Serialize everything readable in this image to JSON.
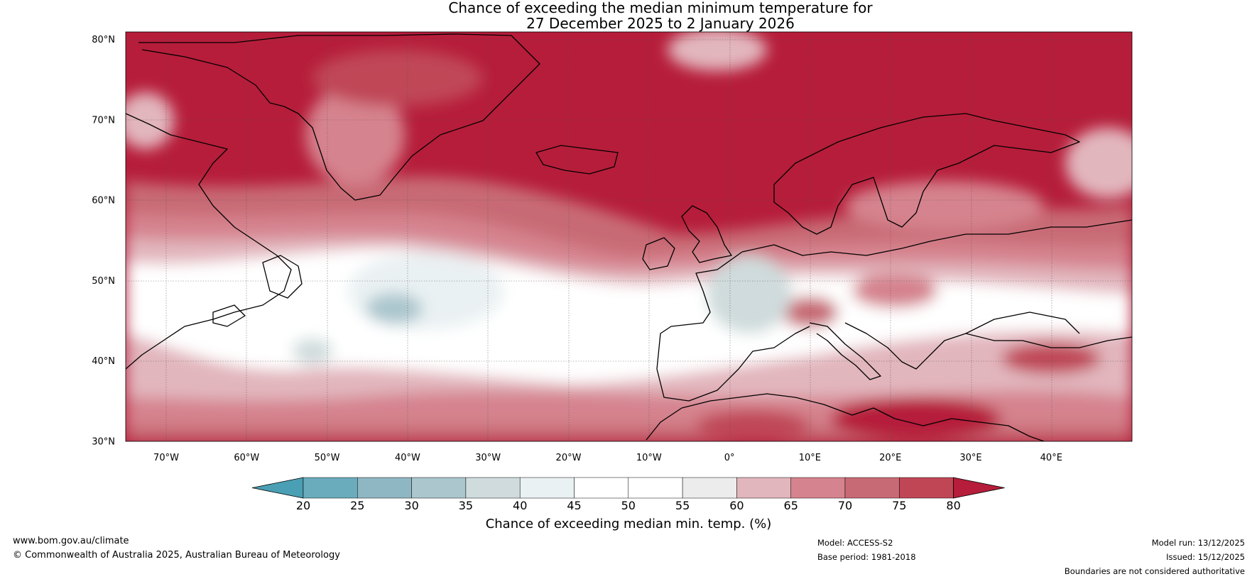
{
  "title": {
    "line1": "Chance of exceeding the median minimum temperature for",
    "line2": "27 December 2025 to 2 January 2026"
  },
  "map": {
    "lat_labels": [
      "80°N",
      "70°N",
      "60°N",
      "50°N",
      "40°N",
      "30°N"
    ],
    "lon_labels": [
      "70°W",
      "60°W",
      "50°W",
      "40°W",
      "30°W",
      "20°W",
      "10°W",
      "0°",
      "10°E",
      "20°E",
      "30°E",
      "40°E"
    ],
    "lat_range": [
      30,
      81
    ],
    "lon_range": [
      -75,
      50
    ]
  },
  "colorbar": {
    "ticks": [
      "20",
      "25",
      "30",
      "35",
      "40",
      "45",
      "50",
      "55",
      "60",
      "65",
      "70",
      "75",
      "80"
    ],
    "label": "Chance of exceeding median min. temp. (%)",
    "colors": {
      "below_20": "#4a9fb4",
      "20_25": "#6aacbc",
      "25_30": "#8fb7c3",
      "30_35": "#abc6cd",
      "35_40": "#cfdbdc",
      "40_45": "#eaf1f3",
      "45_50": "#ffffff",
      "50_55": "#ffffff",
      "55_60": "#ececec",
      "60_65": "#e2b6bd",
      "65_70": "#d5838e",
      "70_75": "#c86a75",
      "75_80": "#c04656",
      "above_80": "#b61d3a"
    }
  },
  "footer": {
    "website": "www.bom.gov.au/climate",
    "copyright": "© Commonwealth of Australia 2025, Australian Bureau of Meteorology",
    "model": "Model: ACCESS-S2",
    "base_period": "Base period: 1981-2018",
    "model_run": "Model run: 13/12/2025",
    "issued": "Issued: 15/12/2025",
    "disclaimer": "Boundaries are not considered authoritative"
  }
}
